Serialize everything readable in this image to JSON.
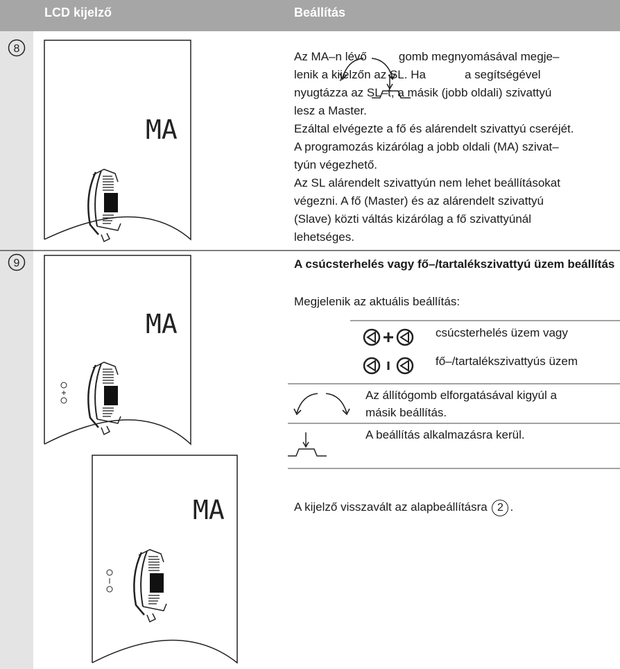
{
  "header": {
    "col1": "LCD kijelző",
    "col2": "Beállítás"
  },
  "rows": [
    {
      "step": "8",
      "lcd": [
        "MA"
      ],
      "lines": [
        [
          "Az MA–n lévő",
          "gomb megnyomásával megje–"
        ],
        [
          "lenik a kijelzőn az SL. Ha",
          "a segítségével"
        ],
        [
          "nyugtázza az SL–t, a másik (jobb oldali) szivattyú"
        ],
        [
          "lesz a Master."
        ],
        [
          "Ezáltal elvégezte a fő és alárendelt szivattyú cseréjét."
        ],
        [
          "A programozás kizárólag a jobb oldali (MA) szivat–"
        ],
        [
          "tyún végezhető."
        ],
        [
          "Az SL alárendelt szivattyún nem lehet beállításokat"
        ],
        [
          "végezni. A fő (Master) és az alárendelt szivattyú"
        ],
        [
          "(Slave) közti váltás kizárólag a fő szivattyúnál"
        ],
        [
          "lehetséges."
        ]
      ]
    },
    {
      "step": "9",
      "lcd": [
        "MA",
        "MA"
      ],
      "title": "A csúcsterhelés vagy fő–/tartalékszivattyú üzem beállítás",
      "intro": "Megjelenik az aktuális beállítás:",
      "options": [
        "csúcsterhelés üzem vagy",
        "fő–/tartalékszivattyús üzem"
      ],
      "actions": [
        "Az állítógomb elforgatásával kigyúl a másik beállítás.",
        "A beállítás alkalmazásra kerül."
      ],
      "footer": {
        "text": "A kijelző visszavált az alapbeállításra",
        "ref": "2",
        "end": "."
      }
    }
  ]
}
